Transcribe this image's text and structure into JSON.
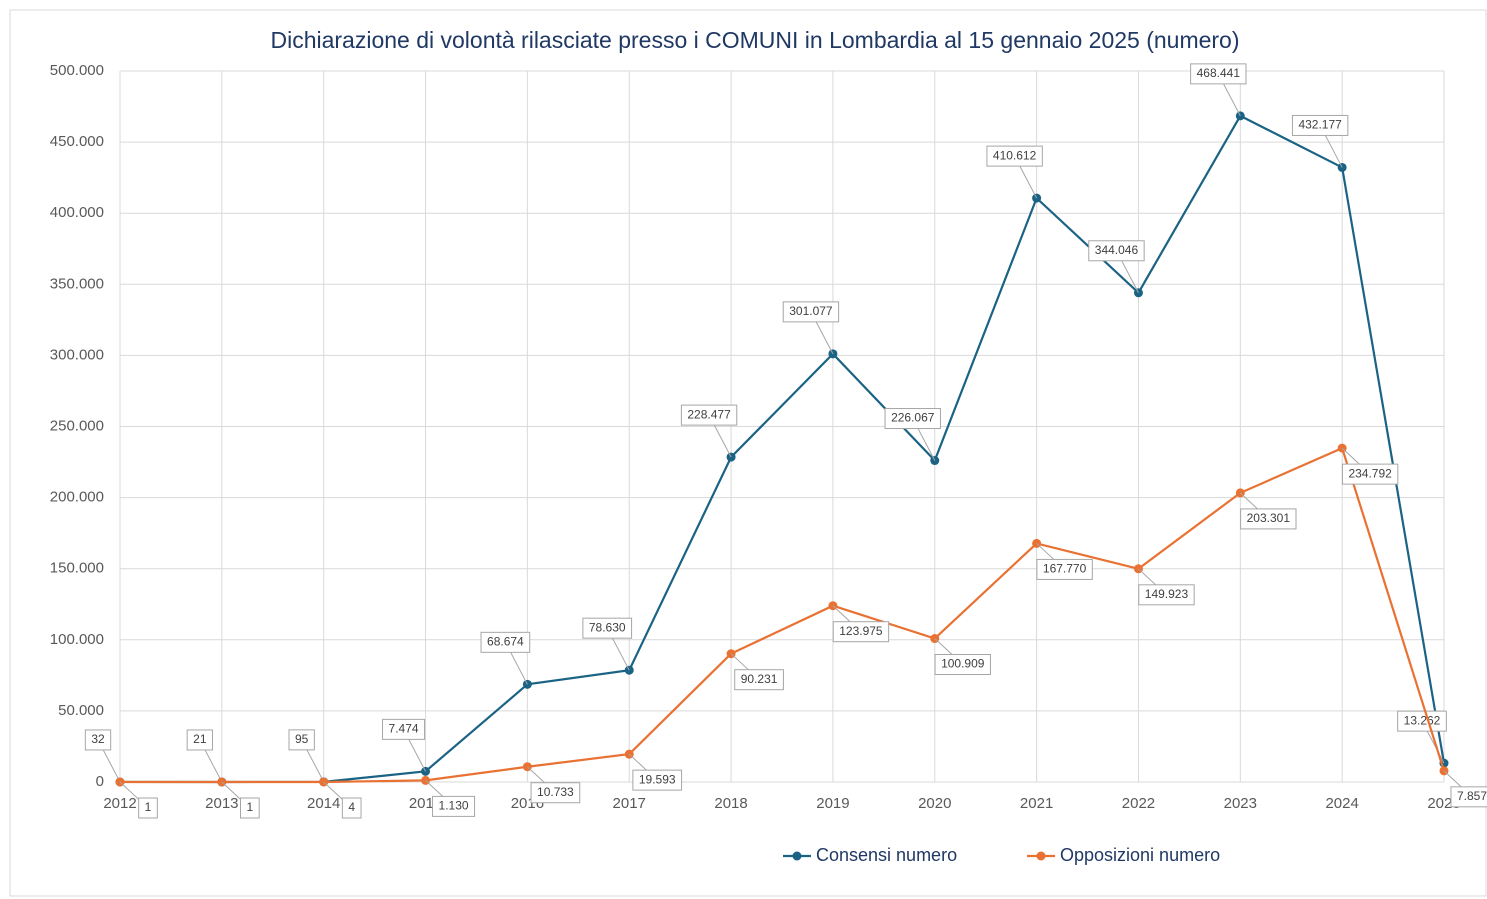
{
  "chart_data": {
    "type": "line",
    "title": "Dichiarazione di volontà rilasciate presso i COMUNI in Lombardia al 15 gennaio 2025 (numero)",
    "categories": [
      "2012",
      "2013",
      "2014",
      "2015",
      "2016",
      "2017",
      "2018",
      "2019",
      "2020",
      "2021",
      "2022",
      "2023",
      "2024",
      "2025"
    ],
    "series": [
      {
        "name": "Consensi numero",
        "color": "#1b6384",
        "values": [
          32,
          21,
          95,
          7474,
          68674,
          78630,
          228477,
          301077,
          226067,
          410612,
          344046,
          468441,
          432177,
          13262
        ],
        "value_labels": [
          "32",
          "21",
          "95",
          "7.474",
          "68.674",
          "78.630",
          "228.477",
          "301.077",
          "226.067",
          "410.612",
          "344.046",
          "468.441",
          "432.177",
          "13.262"
        ]
      },
      {
        "name": "Opposizioni numero",
        "color": "#e97132",
        "values": [
          1,
          1,
          4,
          1130,
          10733,
          19593,
          90231,
          123975,
          100909,
          167770,
          149923,
          203301,
          234792,
          7857
        ],
        "value_labels": [
          "1",
          "1",
          "4",
          "1.130",
          "10.733",
          "19.593",
          "90.231",
          "123.975",
          "100.909",
          "167.770",
          "149.923",
          "203.301",
          "234.792",
          "7.857"
        ]
      }
    ],
    "ylim": [
      0,
      500000
    ],
    "yticks": [
      0,
      {
        "value": 50000,
        "label": "50.000"
      },
      {
        "value": 100000,
        "label": "100.000"
      },
      {
        "value": 150000,
        "label": "150.000"
      },
      {
        "value": 200000,
        "label": "200.000"
      },
      {
        "value": 250000,
        "label": "250.000"
      },
      {
        "value": 300000,
        "label": "300.000"
      },
      {
        "value": 350000,
        "label": "350.000"
      },
      {
        "value": 400000,
        "label": "400.000"
      },
      {
        "value": 450000,
        "label": "450.000"
      },
      {
        "value": 500000,
        "label": "500.000"
      }
    ],
    "grid": true,
    "legend": "bottom"
  }
}
